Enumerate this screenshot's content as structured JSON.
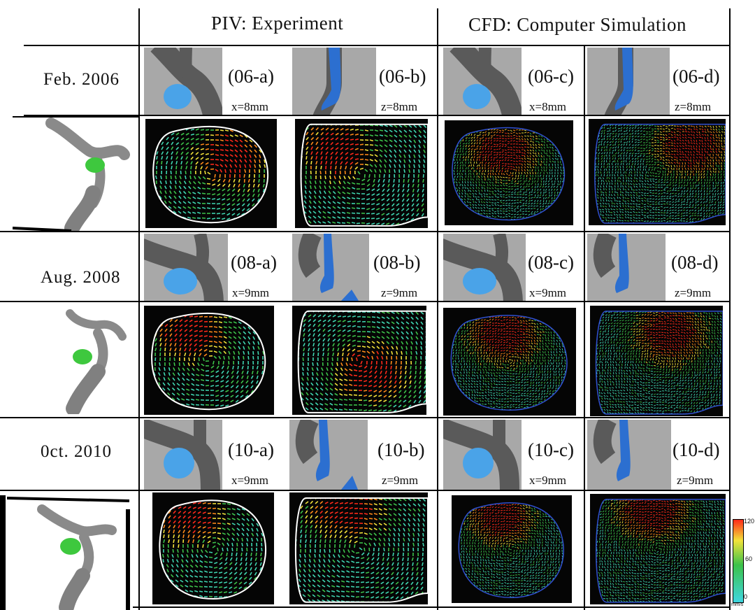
{
  "header": {
    "piv": "PIV: Experiment",
    "cfd": "CFD: Computer Simulation"
  },
  "rows": [
    {
      "date": "Feb. 2006",
      "panels": [
        {
          "label": "(06-a)",
          "distance": "x=8mm"
        },
        {
          "label": "(06-b)",
          "distance": "z=8mm"
        },
        {
          "label": "(06-c)",
          "distance": "x=8mm"
        },
        {
          "label": "(06-d)",
          "distance": "z=8mm"
        }
      ]
    },
    {
      "date": "Aug. 2008",
      "panels": [
        {
          "label": "(08-a)",
          "distance": "x=9mm"
        },
        {
          "label": "(08-b)",
          "distance": "z=9mm"
        },
        {
          "label": "(08-c)",
          "distance": "x=9mm"
        },
        {
          "label": "(08-d)",
          "distance": "z=9mm"
        }
      ]
    },
    {
      "date": "0ct. 2010",
      "panels": [
        {
          "label": "(10-a)",
          "distance": "x=9mm"
        },
        {
          "label": "(10-b)",
          "distance": "z=9mm"
        },
        {
          "label": "(10-c)",
          "distance": "x=9mm"
        },
        {
          "label": "(10-d)",
          "distance": "z=9mm"
        }
      ]
    }
  ],
  "colorbar": {
    "max": "120",
    "mid": "60",
    "min": "0",
    "unit": "mm/s",
    "colors": [
      "#ff2a1a",
      "#f2e23a",
      "#3cc24a",
      "#3fd6e0"
    ]
  }
}
